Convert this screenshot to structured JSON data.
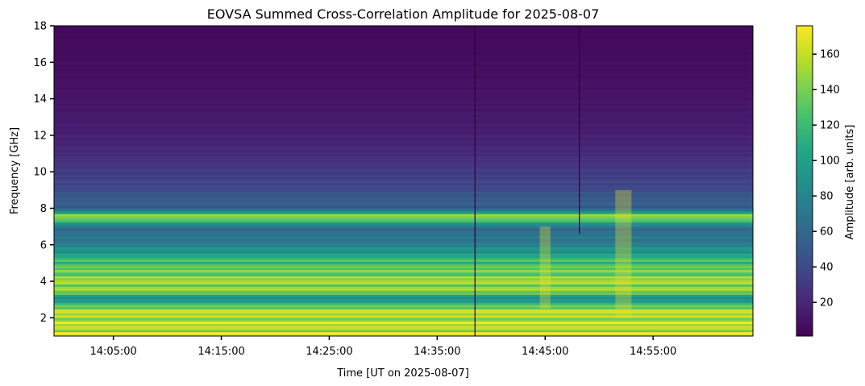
{
  "chart_data": {
    "type": "heatmap",
    "title": "EOVSA Summed Cross-Correlation Amplitude for 2025-08-07",
    "xlabel": "Time [UT on 2025-08-07]",
    "ylabel": "Frequency [GHz]",
    "colorbar_label": "Amplitude [arb. units]",
    "colormap": "viridis",
    "xlim": [
      "13:59:30",
      "15:04:15"
    ],
    "ylim": [
      1,
      18
    ],
    "clim": [
      1,
      176
    ],
    "x_ticks": [
      "14:05:00",
      "14:15:00",
      "14:25:00",
      "14:35:00",
      "14:45:00",
      "14:55:00"
    ],
    "y_ticks": [
      2,
      4,
      6,
      8,
      10,
      12,
      14,
      16,
      18
    ],
    "colorbar_ticks": [
      20,
      40,
      60,
      80,
      100,
      120,
      140,
      160
    ],
    "frequency_profile_ghz": [
      {
        "f": 1.0,
        "amp": 176
      },
      {
        "f": 1.5,
        "amp": 176
      },
      {
        "f": 2.0,
        "amp": 170
      },
      {
        "f": 2.5,
        "amp": 172
      },
      {
        "f": 3.0,
        "amp": 90
      },
      {
        "f": 3.5,
        "amp": 160
      },
      {
        "f": 4.0,
        "amp": 165
      },
      {
        "f": 4.5,
        "amp": 150
      },
      {
        "f": 5.0,
        "amp": 140
      },
      {
        "f": 5.5,
        "amp": 110
      },
      {
        "f": 6.0,
        "amp": 85
      },
      {
        "f": 6.5,
        "amp": 75
      },
      {
        "f": 7.0,
        "amp": 70
      },
      {
        "f": 7.5,
        "amp": 176
      },
      {
        "f": 8.0,
        "amp": 55
      },
      {
        "f": 8.5,
        "amp": 60
      },
      {
        "f": 9.0,
        "amp": 45
      },
      {
        "f": 10.0,
        "amp": 35
      },
      {
        "f": 11.0,
        "amp": 25
      },
      {
        "f": 12.0,
        "amp": 18
      },
      {
        "f": 14.0,
        "amp": 12
      },
      {
        "f": 16.0,
        "amp": 8
      },
      {
        "f": 18.0,
        "amp": 5
      }
    ],
    "notable_features": [
      {
        "type": "dark_vertical_line",
        "time": "14:38:30"
      },
      {
        "type": "dark_vertical_line",
        "time": "14:48:10",
        "f_range_ghz": [
          6.6,
          18
        ]
      },
      {
        "type": "bright_column",
        "time_range": [
          "14:44:30",
          "14:45:30"
        ],
        "f_range_ghz": [
          2.5,
          7
        ]
      },
      {
        "type": "bright_burst",
        "time_range": [
          "14:51:30",
          "14:53:00"
        ],
        "f_range_ghz": [
          2,
          9
        ]
      }
    ]
  }
}
